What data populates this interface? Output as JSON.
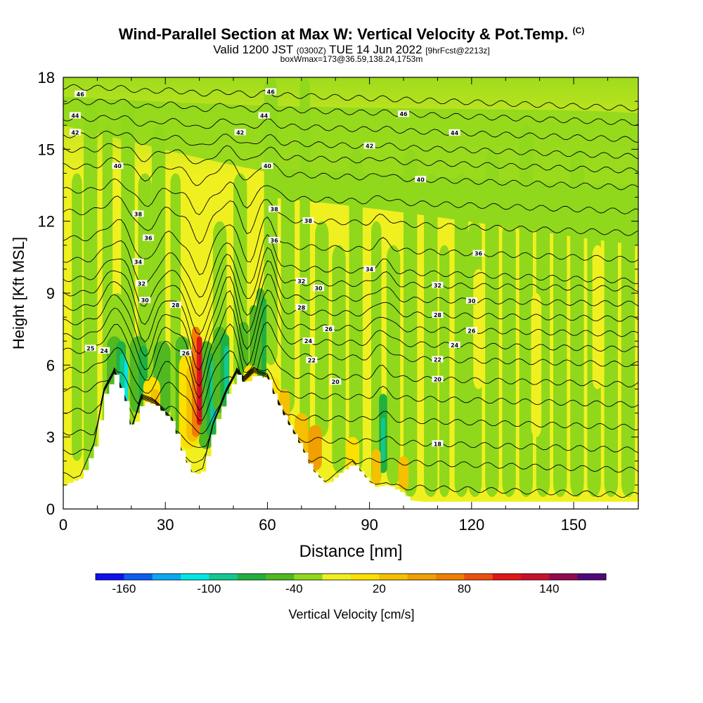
{
  "title": {
    "main": "Wind-Parallel Section at Max W: Vertical Velocity & Pot.Temp.",
    "copyright": "(C)",
    "valid_prefix": "Valid 1200 JST",
    "valid_utc": "(0300Z)",
    "valid_date": "TUE 14 Jun 2022",
    "forecast": "[9hrFcst@2213z]",
    "subtitle": "boxWmax=173@36.59,138.24,1753m"
  },
  "chart_data": {
    "type": "heatmap",
    "xlabel": "Distance [nm]",
    "ylabel": "Height [Kft MSL]",
    "xlim": [
      0,
      169
    ],
    "ylim": [
      0,
      18
    ],
    "x_ticks": [
      0,
      30,
      60,
      90,
      120,
      150
    ],
    "y_ticks": [
      0,
      3,
      6,
      9,
      12,
      15,
      18
    ],
    "colorbar": {
      "label": "Vertical Velocity [cm/s]",
      "bounds": [
        -180,
        180
      ],
      "tick_values": [
        -160,
        -100,
        -40,
        20,
        80,
        140
      ],
      "colors": [
        "#1010ee",
        "#0a5cf2",
        "#0aa8f2",
        "#00e6e6",
        "#10c890",
        "#20b040",
        "#50b820",
        "#90d81c",
        "#f0f020",
        "#fce000",
        "#f4c000",
        "#f0a000",
        "#f07e00",
        "#ec5010",
        "#e01818",
        "#c8102a",
        "#900a50",
        "#50087a"
      ]
    },
    "potential_temperature_labels": [
      "46",
      "44",
      "42",
      "40",
      "38",
      "36",
      "34",
      "32",
      "30",
      "28",
      "26",
      "24",
      "22",
      "20",
      "18"
    ],
    "terrain_height_kft": [
      [
        0,
        1.0
      ],
      [
        5,
        1.3
      ],
      [
        9,
        2.6
      ],
      [
        12,
        4.8
      ],
      [
        15,
        5.6
      ],
      [
        18,
        4.5
      ],
      [
        20,
        3.2
      ],
      [
        23,
        4.5
      ],
      [
        27,
        4.3
      ],
      [
        32,
        3.6
      ],
      [
        35,
        2.2
      ],
      [
        38,
        1.4
      ],
      [
        41,
        1.6
      ],
      [
        44,
        3.4
      ],
      [
        48,
        4.8
      ],
      [
        51,
        5.6
      ],
      [
        53,
        5.2
      ],
      [
        56,
        5.6
      ],
      [
        60,
        5.4
      ],
      [
        62,
        4.6
      ],
      [
        66,
        3.5
      ],
      [
        70,
        2.5
      ],
      [
        73,
        1.6
      ],
      [
        77,
        1.0
      ],
      [
        81,
        1.5
      ],
      [
        85,
        1.9
      ],
      [
        88,
        1.4
      ],
      [
        91,
        0.9
      ],
      [
        95,
        1.0
      ],
      [
        99,
        0.7
      ],
      [
        102,
        0.35
      ],
      [
        105,
        0.3
      ],
      [
        169,
        0.3
      ]
    ],
    "updraft_max_location_nm": 40,
    "updraft_max_cm_s": 173
  }
}
